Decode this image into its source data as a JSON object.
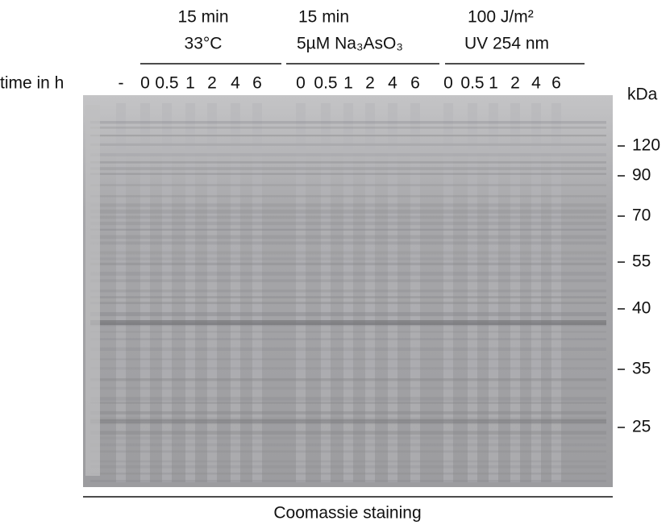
{
  "row_label": "time in h",
  "conditions": [
    {
      "line1": "15 min",
      "line2": "33°C"
    },
    {
      "line1": "15 min",
      "line2": "5µM Na₃AsO₃"
    },
    {
      "line1": "100 J/m²",
      "line2": "UV 254 nm"
    }
  ],
  "lanes": [
    "-",
    "0",
    "0.5",
    "1",
    "2",
    "4",
    "6",
    "0",
    "0.5",
    "1",
    "2",
    "4",
    "6",
    "0",
    "0.5",
    "1",
    "2",
    "4",
    "6"
  ],
  "marker_unit": "kDa",
  "markers": [
    120,
    90,
    70,
    55,
    40,
    35,
    25
  ],
  "caption": "Coomassie staining"
}
